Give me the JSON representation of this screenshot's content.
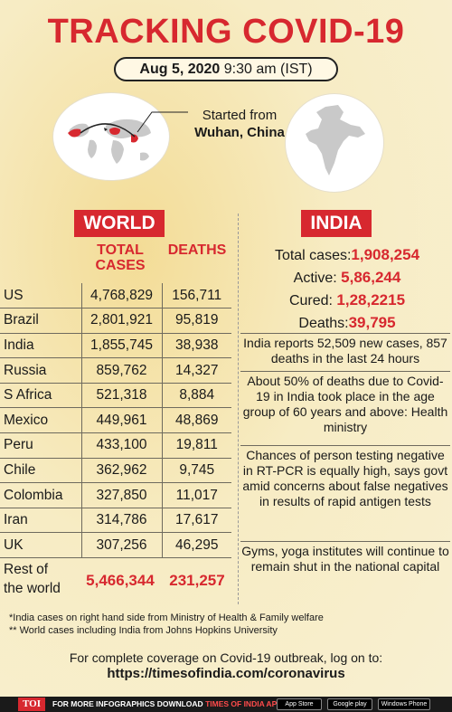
{
  "header": {
    "title": "TRACKING COVID-19",
    "date": "Aug 5, 2020",
    "time": "9:30 am (IST)"
  },
  "origin": {
    "line1": "Started from",
    "line2": "Wuhan, China"
  },
  "world": {
    "label": "WORLD",
    "col_cases": "TOTAL CASES",
    "col_deaths": "DEATHS",
    "rows": [
      {
        "country": "US",
        "cases": "4,768,829",
        "deaths": "156,711"
      },
      {
        "country": "Brazil",
        "cases": "2,801,921",
        "deaths": "95,819"
      },
      {
        "country": "India",
        "cases": "1,855,745",
        "deaths": "38,938"
      },
      {
        "country": "Russia",
        "cases": "859,762",
        "deaths": "14,327"
      },
      {
        "country": "S Africa",
        "cases": "521,318",
        "deaths": "8,884"
      },
      {
        "country": "Mexico",
        "cases": "449,961",
        "deaths": "48,869"
      },
      {
        "country": "Peru",
        "cases": "433,100",
        "deaths": "19,811"
      },
      {
        "country": "Chile",
        "cases": "362,962",
        "deaths": "9,745"
      },
      {
        "country": "Colombia",
        "cases": "327,850",
        "deaths": "11,017"
      },
      {
        "country": "Iran",
        "cases": "314,786",
        "deaths": "17,617"
      },
      {
        "country": "UK",
        "cases": "307,256",
        "deaths": "46,295"
      }
    ],
    "rest": {
      "line1": "Rest of",
      "line2": "the world",
      "cases": "5,466,344",
      "deaths": "231,257"
    }
  },
  "india": {
    "label": "INDIA",
    "total_label": "Total cases:",
    "total_value": "1,908,254",
    "active_label": "Active:",
    "active_value": "5,86,244",
    "cured_label": "Cured:",
    "cured_value": "1,28,2215",
    "deaths_label": "Deaths:",
    "deaths_value": "39,795",
    "notes": [
      "India reports 52,509 new cases, 857 deaths in the last 24 hours",
      "About 50% of deaths due to Covid-19 in India took place in the age group of 60 years and above: Health ministry",
      "Chances of person testing negative in RT-PCR is equally high, says govt amid concerns about false negatives in results of rapid antigen tests",
      "Gyms, yoga institutes will continue to remain shut in the national capital"
    ]
  },
  "footnotes": {
    "note1": "*India cases on right hand side from Ministry of Health & Family welfare",
    "note2": "** World cases including India from Johns Hopkins University"
  },
  "coverage": {
    "text": "For complete coverage on Covid-19 outbreak, log on to:",
    "url": "https://timesofindia.com/coronavirus"
  },
  "bottom_bar": {
    "logo": "TOI",
    "text": "FOR MORE  INFOGRAPHICS DOWNLOAD ",
    "app": "TIMES OF INDIA  APP",
    "app_store": "App Store",
    "google_play": "Google play",
    "windows": "Windows Phone"
  },
  "colors": {
    "accent": "#d7282f",
    "background": "#f6e9b8"
  }
}
